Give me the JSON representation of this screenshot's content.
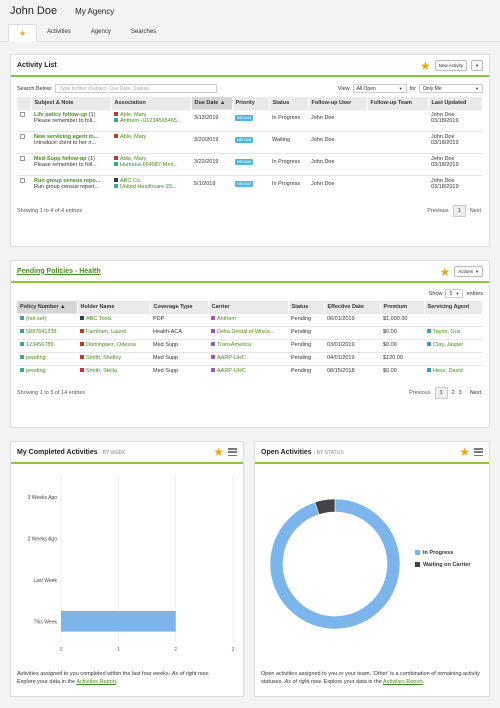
{
  "header": {
    "user": "John Doe",
    "agency": "My Agency"
  },
  "tabs": [
    {
      "label": "Activities"
    },
    {
      "label": "Agency"
    },
    {
      "label": "Searches"
    }
  ],
  "activity_list": {
    "title": "Activity List",
    "new_activity": "New Activity",
    "search_label": "Search Below:",
    "search_placeholder": "Type to filter (Subject, Due Date, Status)",
    "view_label": "View",
    "view_value": "All Open",
    "for_label": "for",
    "for_value": "Only Me",
    "columns": [
      "Subject & Note",
      "Association",
      "Due Date",
      "Priority",
      "Status",
      "Follow-up User",
      "Follow-up Team",
      "Last Updated"
    ],
    "rows": [
      {
        "subject": "Life policy follow-up",
        "count": "(1)",
        "note": "Please remember to foll...",
        "assoc1": "Able, Mary",
        "assoc2": "Anthem -U1234565465...",
        "due": "3/13/2019",
        "priority": "MEDIUM",
        "status": "In Progress",
        "user": "John Doe",
        "team": "",
        "updated_by": "John Doe",
        "updated": "03/18/2019"
      },
      {
        "subject": "New servicing agent in...",
        "count": "",
        "note": "Introduce client to her n...",
        "assoc1": "Able, Mary",
        "assoc2": "",
        "due": "3/20/2019",
        "priority": "MEDIUM",
        "status": "Waiting",
        "user": "John Doe",
        "team": "",
        "updated_by": "John Doe",
        "updated": "03/18/2019"
      },
      {
        "subject": "Med-Supp follow-up",
        "count": "(1)",
        "note": "Please remember to foll...",
        "assoc1": "Able, Mary",
        "assoc2": "Humana-654987-Med...",
        "due": "3/22/2019",
        "priority": "MEDIUM",
        "status": "In Progress",
        "user": "John Doe",
        "team": "",
        "updated_by": "John Doe",
        "updated": "03/18/2019"
      },
      {
        "subject": "Run group census repo...",
        "count": "",
        "note": "Run group census report...",
        "assoc1": "ABC Co.",
        "assoc2": "United Healthcare-23...",
        "due": "5/1/2019",
        "priority": "MEDIUM",
        "status": "In Progress",
        "user": "John Doe",
        "team": "",
        "updated_by": "John Doe",
        "updated": "03/18/2019"
      }
    ],
    "showing": "Showing 1 to 4 of 4 entries",
    "previous": "Previous",
    "page": "1",
    "next": "Next"
  },
  "pending": {
    "title": "Pending Policies - Health",
    "actions": "Actions",
    "show_label": "Show",
    "show_value": "5",
    "entries_label": "entries",
    "columns": [
      "Policy Number",
      "Holder Name",
      "Coverage Type",
      "Carrier",
      "Status",
      "Effective Date",
      "Premium",
      "Servicing Agent"
    ],
    "rows": [
      {
        "policy": "(not set)",
        "holder": "ABC Tools",
        "holder_color": "navy",
        "coverage": "PDP",
        "carrier": "Anthem",
        "status": "Pending",
        "effective": "06/01/2019",
        "premium": "$1,000.00",
        "agent": ""
      },
      {
        "policy": "5897641238",
        "holder": "Farnham, Laurel",
        "holder_color": "red",
        "coverage": "Health-ACA",
        "carrier": "Delta Dental of Wisco...",
        "status": "Pending",
        "effective": "",
        "premium": "$0.00",
        "agent": "Taylor, Gus"
      },
      {
        "policy": "123456789",
        "holder": "Dominguez, Odessa",
        "holder_color": "red",
        "coverage": "Med Supp",
        "carrier": "TransAmerica",
        "status": "Pending",
        "effective": "03/01/2019",
        "premium": "$0.00",
        "agent": "Clay, Jasper"
      },
      {
        "policy": "pending",
        "holder": "Smith, Shelley",
        "holder_color": "red",
        "coverage": "Med Supp",
        "carrier": "AARP-UHC",
        "status": "Pending",
        "effective": "04/01/2019",
        "premium": "$120.00",
        "agent": ""
      },
      {
        "policy": "pending",
        "holder": "Smith, Stella",
        "holder_color": "red",
        "coverage": "Med Supp",
        "carrier": "AARP-UHC",
        "status": "Pending",
        "effective": "08/15/2018",
        "premium": "$0.00",
        "agent": "Hess, David"
      }
    ],
    "showing": "Showing 1 to 5 of 14 entries",
    "previous": "Previous",
    "pages": [
      "1",
      "2",
      "3"
    ],
    "next": "Next"
  },
  "completed": {
    "title": "My Completed Activities",
    "subtitle": "- BY WEEK",
    "footer_a": "Activities assigned to you completed within the last four weeks.",
    "footer_b": "As of right now.",
    "footer_c": "Explore your data in the",
    "footer_link": "Activities Report",
    "footer_end": "."
  },
  "open": {
    "title": "Open Activities",
    "subtitle": "- BY STATUS",
    "footer_a": "Open activities assigned to you or your team. 'Other' is a combination of remaining activity statuses.",
    "footer_b": "As of right now.",
    "footer_c": "Explore your data in the",
    "footer_link": "Activities Report",
    "footer_end": "."
  },
  "chart_data": [
    {
      "type": "bar",
      "orientation": "horizontal",
      "categories": [
        "3 Weeks Ago",
        "2 Weeks Ago",
        "Last Week",
        "This Week"
      ],
      "values": [
        0,
        0,
        0,
        2
      ],
      "xlim": [
        0,
        3
      ],
      "xticks": [
        "0",
        "1",
        "2",
        "3"
      ],
      "color": "#7cb5ec",
      "grid": true
    },
    {
      "type": "pie",
      "donut": true,
      "series": [
        {
          "name": "In Progress",
          "value": 95,
          "color": "#7cb5ec"
        },
        {
          "name": "Waiting on Carrier",
          "value": 5,
          "color": "#434348"
        }
      ],
      "legend": "right"
    }
  ]
}
